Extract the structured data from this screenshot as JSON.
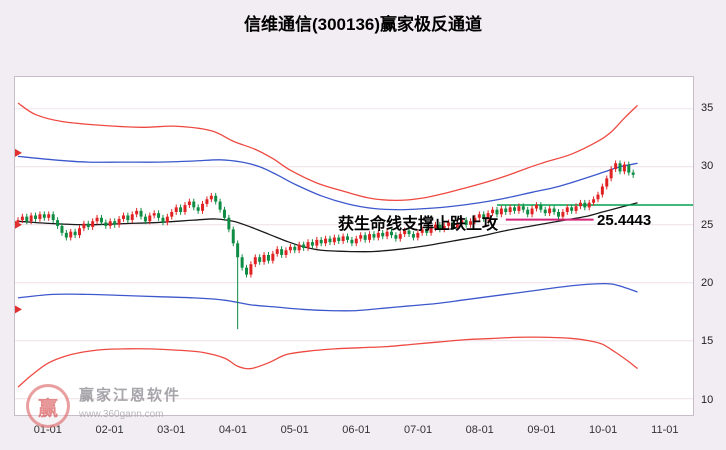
{
  "title": "信维通信(300136)赢家极反通道",
  "annotation": "获生命线支撑止跌上攻",
  "price_label": "25.4443",
  "watermark": {
    "logo_char": "赢",
    "brand": "赢家江恩软件",
    "url": "www.360gann.com"
  },
  "colors": {
    "background": "#f2edf3",
    "plot_bg": "#ffffff",
    "grid": "#efdfe9",
    "band_red": "#ee4a42",
    "band_blue": "#3d58cc",
    "lifeline": "#1a1a1a",
    "candle_up": "#e02222",
    "candle_down": "#0e8c44",
    "green_line": "#00a24e",
    "magenta_line": "#d4247a",
    "marker_red": "#e03030"
  },
  "chart_data": {
    "type": "candlestick",
    "title": "信维通信(300136)赢家极反通道",
    "symbol": "信维通信",
    "code": "300136",
    "indicator": "赢家极反通道",
    "ylim": [
      8.6,
      37.74
    ],
    "y_ticks": [
      35,
      30,
      25,
      20,
      15,
      10
    ],
    "x_ticks": [
      {
        "label": "01-01",
        "day": 7
      },
      {
        "label": "02-01",
        "day": 21
      },
      {
        "label": "03-01",
        "day": 35
      },
      {
        "label": "04-01",
        "day": 49
      },
      {
        "label": "05-01",
        "day": 63
      },
      {
        "label": "06-01",
        "day": 77
      },
      {
        "label": "07-01",
        "day": 91
      },
      {
        "label": "08-01",
        "day": 105
      },
      {
        "label": "09-01",
        "day": 119
      },
      {
        "label": "10-01",
        "day": 133
      },
      {
        "label": "11-01",
        "day": 147
      }
    ],
    "candles": [
      [
        25.2,
        25.65,
        24.95,
        25.4
      ],
      [
        25.4,
        25.95,
        25.15,
        25.7
      ],
      [
        25.7,
        25.95,
        25.05,
        25.3
      ],
      [
        25.3,
        26.05,
        25.05,
        25.8
      ],
      [
        25.8,
        26.05,
        25.25,
        25.5
      ],
      [
        25.5,
        26.15,
        25.25,
        25.9
      ],
      [
        25.9,
        26.15,
        25.35,
        25.6
      ],
      [
        25.6,
        26.15,
        25.35,
        25.9
      ],
      [
        25.9,
        26.15,
        25.15,
        25.4
      ],
      [
        25.4,
        25.65,
        24.65,
        24.9
      ],
      [
        24.9,
        25.15,
        24.05,
        24.3
      ],
      [
        24.3,
        24.55,
        23.65,
        23.9
      ],
      [
        23.9,
        24.65,
        23.65,
        24.4
      ],
      [
        24.4,
        24.65,
        23.85,
        24.1
      ],
      [
        24.1,
        24.95,
        23.85,
        24.7
      ],
      [
        24.7,
        25.35,
        24.45,
        25.1
      ],
      [
        25.1,
        25.35,
        24.55,
        24.8
      ],
      [
        24.8,
        25.55,
        24.55,
        25.3
      ],
      [
        25.3,
        25.85,
        25.05,
        25.6
      ],
      [
        25.6,
        25.85,
        24.95,
        25.2
      ],
      [
        25.2,
        25.45,
        24.65,
        24.9
      ],
      [
        24.9,
        25.55,
        24.65,
        25.3
      ],
      [
        25.3,
        25.55,
        24.75,
        25.0
      ],
      [
        25.0,
        25.75,
        24.75,
        25.5
      ],
      [
        25.5,
        26.05,
        25.25,
        25.8
      ],
      [
        25.8,
        26.05,
        25.15,
        25.4
      ],
      [
        25.4,
        26.15,
        25.15,
        25.9
      ],
      [
        25.9,
        26.45,
        25.65,
        26.2
      ],
      [
        26.2,
        26.45,
        25.45,
        25.7
      ],
      [
        25.7,
        25.95,
        25.05,
        25.3
      ],
      [
        25.3,
        26.05,
        25.05,
        25.8
      ],
      [
        25.8,
        26.25,
        25.55,
        26.0
      ],
      [
        26.0,
        26.25,
        25.35,
        25.6
      ],
      [
        25.6,
        25.85,
        24.95,
        25.2
      ],
      [
        25.2,
        25.95,
        24.95,
        25.7
      ],
      [
        25.7,
        26.35,
        25.45,
        26.1
      ],
      [
        26.1,
        26.75,
        25.85,
        26.5
      ],
      [
        26.5,
        26.75,
        25.85,
        26.1
      ],
      [
        26.1,
        26.95,
        25.85,
        26.7
      ],
      [
        26.7,
        27.25,
        26.45,
        27.0
      ],
      [
        27.0,
        27.25,
        26.25,
        26.5
      ],
      [
        26.5,
        26.75,
        25.95,
        26.2
      ],
      [
        26.2,
        27.05,
        25.95,
        26.8
      ],
      [
        26.8,
        27.45,
        26.55,
        27.2
      ],
      [
        27.2,
        27.75,
        26.95,
        27.5
      ],
      [
        27.5,
        27.75,
        26.75,
        27.0
      ],
      [
        27.0,
        27.25,
        26.05,
        26.3
      ],
      [
        26.3,
        26.55,
        25.35,
        25.6
      ],
      [
        25.6,
        25.85,
        24.35,
        24.6
      ],
      [
        24.6,
        24.85,
        23.15,
        23.4
      ],
      [
        23.4,
        23.65,
        16.0,
        22.2
      ],
      [
        22.2,
        22.45,
        21.05,
        21.3
      ],
      [
        21.3,
        21.55,
        20.45,
        20.7
      ],
      [
        20.7,
        21.85,
        20.45,
        21.6
      ],
      [
        21.6,
        22.45,
        21.35,
        22.2
      ],
      [
        22.2,
        22.45,
        21.55,
        21.8
      ],
      [
        21.8,
        22.65,
        21.55,
        22.4
      ],
      [
        22.4,
        22.65,
        21.65,
        21.9
      ],
      [
        21.9,
        22.75,
        21.65,
        22.5
      ],
      [
        22.5,
        23.15,
        22.25,
        22.9
      ],
      [
        22.9,
        23.15,
        22.15,
        22.4
      ],
      [
        22.4,
        23.05,
        22.15,
        22.8
      ],
      [
        22.8,
        23.35,
        22.55,
        23.1
      ],
      [
        23.1,
        23.35,
        22.55,
        22.8
      ],
      [
        22.8,
        23.55,
        22.55,
        23.3
      ],
      [
        23.3,
        23.55,
        22.75,
        23.0
      ],
      [
        23.0,
        23.75,
        22.75,
        23.5
      ],
      [
        23.5,
        23.75,
        22.95,
        23.2
      ],
      [
        23.2,
        23.95,
        22.95,
        23.7
      ],
      [
        23.7,
        23.95,
        23.15,
        23.4
      ],
      [
        23.4,
        24.05,
        23.15,
        23.8
      ],
      [
        23.8,
        24.05,
        23.25,
        23.5
      ],
      [
        23.5,
        24.15,
        23.25,
        23.9
      ],
      [
        23.9,
        24.15,
        23.35,
        23.6
      ],
      [
        23.6,
        24.25,
        23.35,
        24.0
      ],
      [
        24.0,
        24.25,
        23.45,
        23.7
      ],
      [
        23.7,
        23.95,
        23.15,
        23.4
      ],
      [
        23.4,
        24.05,
        23.15,
        23.8
      ],
      [
        23.8,
        24.35,
        23.55,
        24.1
      ],
      [
        24.1,
        24.35,
        23.45,
        23.7
      ],
      [
        23.7,
        24.45,
        23.45,
        24.2
      ],
      [
        24.2,
        24.45,
        23.65,
        23.9
      ],
      [
        23.9,
        24.55,
        23.65,
        24.3
      ],
      [
        24.3,
        24.55,
        23.75,
        24.0
      ],
      [
        24.0,
        24.65,
        23.75,
        24.4
      ],
      [
        24.4,
        24.65,
        23.85,
        24.1
      ],
      [
        24.1,
        24.35,
        23.55,
        23.8
      ],
      [
        23.8,
        24.45,
        23.55,
        24.2
      ],
      [
        24.2,
        24.75,
        23.95,
        24.5
      ],
      [
        24.5,
        24.75,
        23.95,
        24.2
      ],
      [
        24.2,
        24.45,
        23.65,
        23.9
      ],
      [
        23.9,
        24.55,
        23.65,
        24.3
      ],
      [
        24.3,
        24.85,
        24.05,
        24.6
      ],
      [
        24.6,
        24.85,
        24.05,
        24.3
      ],
      [
        24.3,
        24.95,
        24.05,
        24.7
      ],
      [
        24.7,
        25.25,
        24.45,
        25.0
      ],
      [
        25.0,
        25.25,
        24.35,
        24.6
      ],
      [
        24.6,
        25.15,
        24.35,
        24.9
      ],
      [
        24.9,
        25.45,
        24.65,
        25.2
      ],
      [
        25.2,
        25.45,
        24.55,
        24.8
      ],
      [
        24.8,
        25.35,
        24.55,
        25.1
      ],
      [
        25.1,
        25.65,
        24.85,
        25.4
      ],
      [
        25.4,
        25.65,
        24.75,
        25.0
      ],
      [
        25.0,
        25.55,
        24.75,
        25.3
      ],
      [
        25.3,
        25.85,
        25.05,
        25.6
      ],
      [
        25.6,
        26.15,
        25.35,
        25.9
      ],
      [
        25.9,
        26.15,
        25.25,
        25.5
      ],
      [
        25.5,
        26.25,
        25.25,
        26.0
      ],
      [
        26.0,
        26.55,
        25.75,
        26.3
      ],
      [
        26.3,
        26.55,
        25.65,
        25.9
      ],
      [
        25.9,
        26.65,
        25.65,
        26.4
      ],
      [
        26.4,
        26.65,
        25.85,
        26.1
      ],
      [
        26.1,
        26.75,
        25.85,
        26.5
      ],
      [
        26.5,
        26.75,
        25.95,
        26.2
      ],
      [
        26.2,
        26.85,
        25.95,
        26.6
      ],
      [
        26.6,
        26.85,
        26.05,
        26.3
      ],
      [
        26.3,
        26.55,
        25.65,
        25.9
      ],
      [
        25.9,
        26.65,
        25.65,
        26.4
      ],
      [
        26.4,
        26.95,
        26.15,
        26.7
      ],
      [
        26.7,
        26.95,
        26.05,
        26.3
      ],
      [
        26.3,
        26.55,
        25.75,
        26.0
      ],
      [
        26.0,
        26.65,
        25.75,
        26.4
      ],
      [
        26.4,
        26.65,
        25.85,
        26.1
      ],
      [
        26.1,
        26.35,
        25.45,
        25.7
      ],
      [
        25.7,
        26.35,
        25.45,
        26.1
      ],
      [
        26.1,
        26.75,
        25.85,
        26.5
      ],
      [
        26.5,
        26.75,
        25.95,
        26.2
      ],
      [
        26.2,
        26.85,
        25.95,
        26.6
      ],
      [
        26.6,
        27.15,
        26.35,
        26.9
      ],
      [
        26.9,
        27.15,
        26.25,
        26.5
      ],
      [
        26.5,
        27.15,
        26.25,
        26.9
      ],
      [
        26.9,
        27.45,
        26.65,
        27.2
      ],
      [
        27.2,
        27.85,
        26.95,
        27.6
      ],
      [
        27.6,
        28.55,
        27.35,
        28.3
      ],
      [
        28.3,
        29.25,
        28.05,
        29.0
      ],
      [
        29.0,
        30.05,
        28.75,
        29.8
      ],
      [
        29.8,
        30.55,
        29.55,
        30.3
      ],
      [
        30.3,
        30.55,
        29.35,
        29.6
      ],
      [
        29.6,
        30.45,
        29.35,
        30.2
      ],
      [
        30.2,
        30.45,
        29.25,
        29.5
      ],
      [
        29.5,
        29.75,
        29.05,
        29.3
      ]
    ],
    "bands": {
      "upper_red": [
        [
          0,
          35.5
        ],
        [
          4,
          34.5
        ],
        [
          10,
          33.9
        ],
        [
          18,
          33.6
        ],
        [
          28,
          33.4
        ],
        [
          36,
          33.5
        ],
        [
          44,
          33.1
        ],
        [
          49,
          32.2
        ],
        [
          54,
          31.5
        ],
        [
          58,
          30.7
        ],
        [
          62,
          29.7
        ],
        [
          68,
          28.6
        ],
        [
          74,
          27.9
        ],
        [
          80,
          27.3
        ],
        [
          86,
          27.1
        ],
        [
          92,
          27.3
        ],
        [
          98,
          27.8
        ],
        [
          105,
          28.5
        ],
        [
          111,
          29.2
        ],
        [
          116,
          29.9
        ],
        [
          120,
          30.4
        ],
        [
          126,
          31.1
        ],
        [
          132,
          32.2
        ],
        [
          135,
          33.0
        ],
        [
          138,
          34.2
        ],
        [
          141,
          35.3
        ]
      ],
      "upper_blue": [
        [
          0,
          30.9
        ],
        [
          8,
          30.6
        ],
        [
          16,
          30.4
        ],
        [
          24,
          30.4
        ],
        [
          32,
          30.4
        ],
        [
          40,
          30.5
        ],
        [
          46,
          30.6
        ],
        [
          51,
          30.4
        ],
        [
          55,
          30.0
        ],
        [
          59,
          29.3
        ],
        [
          63,
          28.5
        ],
        [
          69,
          27.5
        ],
        [
          75,
          26.8
        ],
        [
          81,
          26.4
        ],
        [
          87,
          26.3
        ],
        [
          93,
          26.4
        ],
        [
          99,
          26.6
        ],
        [
          105,
          26.9
        ],
        [
          111,
          27.3
        ],
        [
          117,
          27.8
        ],
        [
          123,
          28.3
        ],
        [
          129,
          29.0
        ],
        [
          133,
          29.5
        ],
        [
          137,
          30.0
        ],
        [
          141,
          30.3
        ]
      ],
      "lifeline": [
        [
          0,
          25.3
        ],
        [
          8,
          25.1
        ],
        [
          16,
          25.0
        ],
        [
          24,
          25.1
        ],
        [
          32,
          25.2
        ],
        [
          40,
          25.4
        ],
        [
          45,
          25.5
        ],
        [
          49,
          25.3
        ],
        [
          53,
          24.8
        ],
        [
          57,
          24.2
        ],
        [
          61,
          23.6
        ],
        [
          65,
          23.1
        ],
        [
          69,
          22.8
        ],
        [
          75,
          22.7
        ],
        [
          81,
          22.7
        ],
        [
          87,
          22.9
        ],
        [
          93,
          23.2
        ],
        [
          99,
          23.6
        ],
        [
          105,
          24.0
        ],
        [
          111,
          24.5
        ],
        [
          117,
          24.9
        ],
        [
          123,
          25.3
        ],
        [
          129,
          25.7
        ],
        [
          133,
          26.1
        ],
        [
          137,
          26.5
        ],
        [
          141,
          26.9
        ]
      ],
      "lower_blue": [
        [
          0,
          18.7
        ],
        [
          8,
          19.0
        ],
        [
          16,
          19.0
        ],
        [
          24,
          18.9
        ],
        [
          32,
          18.8
        ],
        [
          40,
          18.7
        ],
        [
          47,
          18.5
        ],
        [
          53,
          18.1
        ],
        [
          59,
          17.9
        ],
        [
          65,
          17.7
        ],
        [
          71,
          17.6
        ],
        [
          77,
          17.6
        ],
        [
          83,
          17.8
        ],
        [
          89,
          18.0
        ],
        [
          95,
          18.2
        ],
        [
          101,
          18.5
        ],
        [
          107,
          18.8
        ],
        [
          113,
          19.1
        ],
        [
          119,
          19.4
        ],
        [
          125,
          19.7
        ],
        [
          131,
          19.9
        ],
        [
          135,
          19.9
        ],
        [
          138,
          19.6
        ],
        [
          141,
          19.2
        ]
      ],
      "lower_red": [
        [
          0,
          11.0
        ],
        [
          3,
          12.0
        ],
        [
          7,
          13.1
        ],
        [
          12,
          13.8
        ],
        [
          18,
          14.2
        ],
        [
          24,
          14.3
        ],
        [
          30,
          14.3
        ],
        [
          36,
          14.2
        ],
        [
          42,
          14.0
        ],
        [
          47,
          13.5
        ],
        [
          50,
          12.8
        ],
        [
          53,
          12.6
        ],
        [
          57,
          13.1
        ],
        [
          61,
          13.8
        ],
        [
          66,
          14.1
        ],
        [
          72,
          14.3
        ],
        [
          78,
          14.4
        ],
        [
          84,
          14.5
        ],
        [
          90,
          14.7
        ],
        [
          96,
          14.9
        ],
        [
          102,
          15.1
        ],
        [
          108,
          15.2
        ],
        [
          114,
          15.3
        ],
        [
          120,
          15.3
        ],
        [
          126,
          15.2
        ],
        [
          130,
          15.0
        ],
        [
          133,
          14.7
        ],
        [
          136,
          14.0
        ],
        [
          139,
          13.2
        ],
        [
          141,
          12.6
        ]
      ]
    },
    "overlays": {
      "green_resistance": {
        "value": 26.7,
        "from_day": 109,
        "to_day": 154
      },
      "magenta_support": {
        "value": 25.4443,
        "from_day": 111,
        "to_day": 131,
        "label": "25.4443"
      }
    },
    "left_markers": [
      31.2,
      25.0,
      17.7
    ]
  }
}
